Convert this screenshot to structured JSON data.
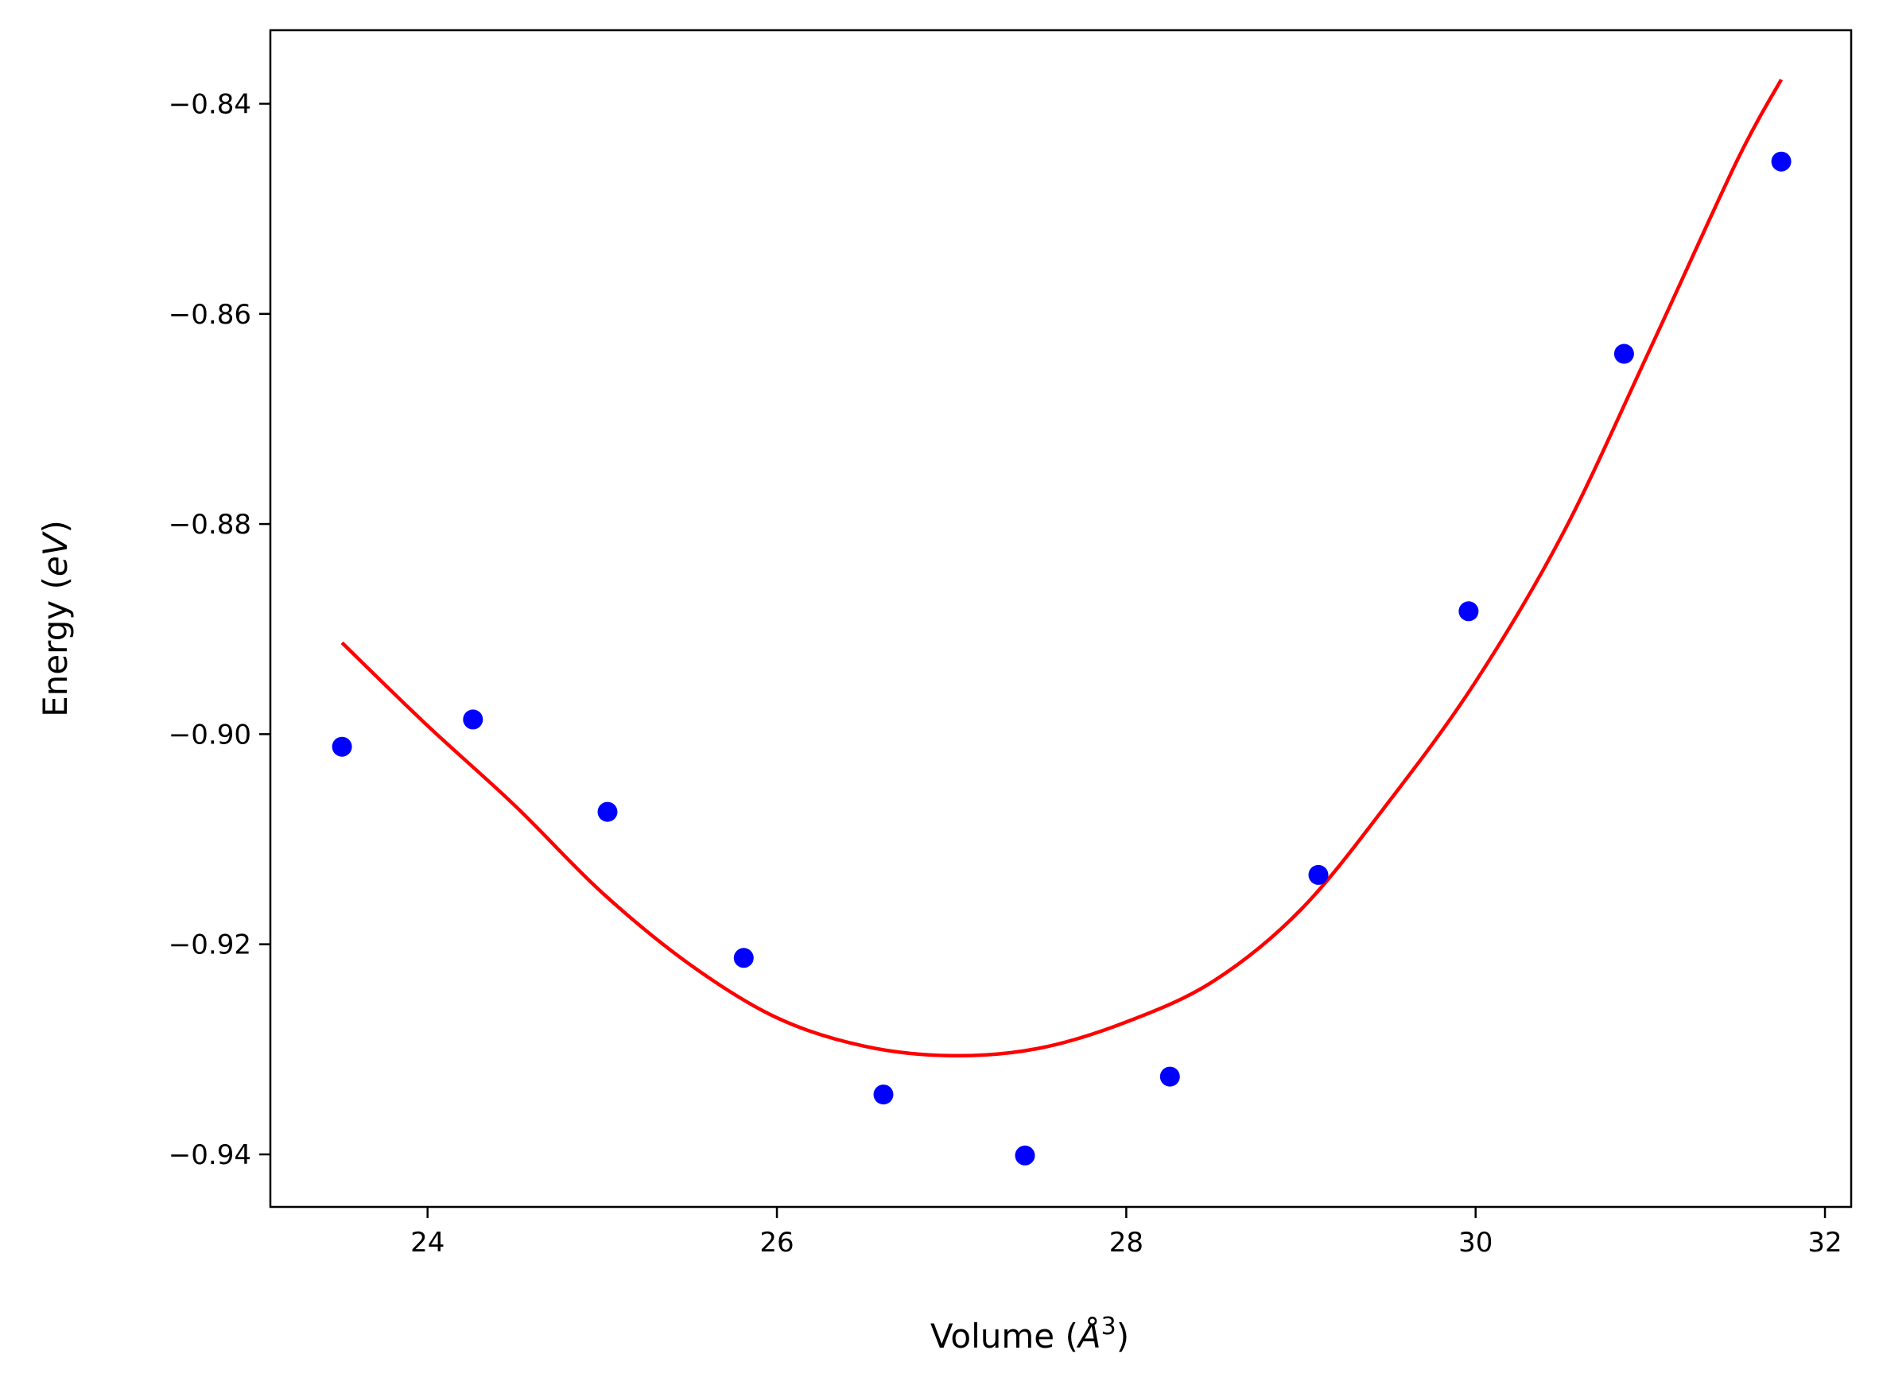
{
  "chart_data": {
    "type": "scatter",
    "xlabel": {
      "prefix": "Volume (",
      "unit": "Å",
      "sup": "3",
      "suffix": ")"
    },
    "ylabel": {
      "prefix": "Energy (",
      "unit": "eV",
      "suffix": ")"
    },
    "xlim": [
      23.1,
      32.15
    ],
    "ylim": [
      -0.945,
      -0.833
    ],
    "x_ticks": [
      24,
      26,
      28,
      30,
      32
    ],
    "x_tick_labels": [
      "24",
      "26",
      "28",
      "30",
      "32"
    ],
    "y_ticks": [
      -0.94,
      -0.92,
      -0.9,
      -0.88,
      -0.86,
      -0.84
    ],
    "y_tick_labels": [
      "−0.94",
      "−0.92",
      "−0.90",
      "−0.88",
      "−0.86",
      "−0.84"
    ],
    "grid": false,
    "points": {
      "color": "#0000ff",
      "x": [
        23.51,
        24.26,
        25.03,
        25.81,
        26.61,
        27.42,
        28.25,
        29.1,
        29.96,
        30.85,
        31.75
      ],
      "y": [
        -0.9012,
        -0.8986,
        -0.9074,
        -0.9213,
        -0.9343,
        -0.9401,
        -0.9326,
        -0.9134,
        -0.8883,
        -0.8638,
        -0.8455
      ]
    },
    "fit_curve": {
      "color": "#ff0000",
      "x": [
        23.51,
        24.0,
        24.5,
        25.0,
        25.5,
        26.0,
        26.5,
        27.0,
        27.5,
        28.0,
        28.5,
        29.0,
        29.5,
        30.0,
        30.5,
        31.0,
        31.5,
        31.75
      ],
      "y": [
        -0.8913,
        -0.8992,
        -0.9068,
        -0.9151,
        -0.9219,
        -0.927,
        -0.9297,
        -0.9306,
        -0.9299,
        -0.9274,
        -0.9235,
        -0.9167,
        -0.9065,
        -0.895,
        -0.8809,
        -0.8633,
        -0.8453,
        -0.8377
      ]
    }
  }
}
